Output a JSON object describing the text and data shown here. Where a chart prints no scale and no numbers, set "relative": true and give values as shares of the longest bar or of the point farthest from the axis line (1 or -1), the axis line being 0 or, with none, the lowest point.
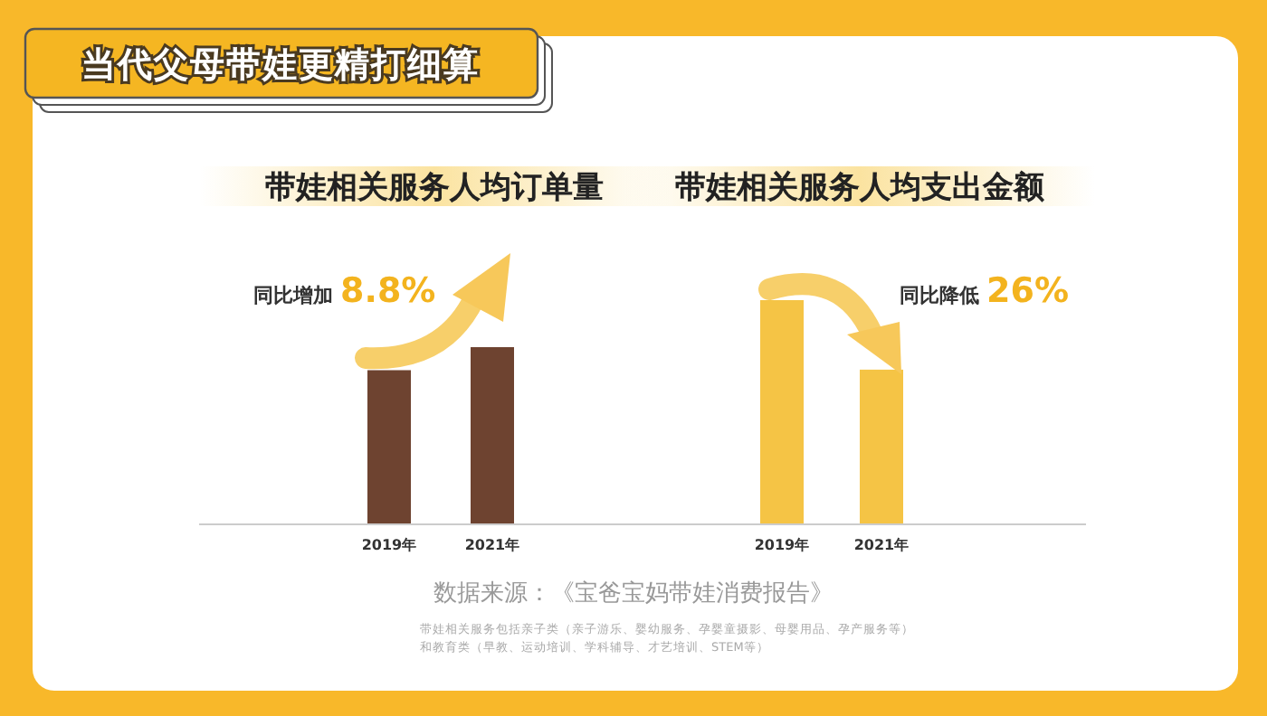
{
  "chart_data": [
    {
      "type": "other",
      "title": "当代父母带娃更精打细算",
      "annotations": [
        "数据来源：《宝爸宝妈带娃消费报告》",
        "带娃相关服务包括亲子类（亲子游乐、婴幼服务、孕婴童摄影、母婴用品、孕产服务等）",
        "和教育类（早教、运动培训、学科辅导、才艺培训、STEM等）"
      ]
    },
    {
      "type": "bar",
      "title": "带娃相关服务人均订单量",
      "categories": [
        "2019年",
        "2021年"
      ],
      "values": [
        0.87,
        1
      ],
      "color": "#6e4330",
      "relative": true,
      "annotations": [
        "同比增加 8.8%"
      ]
    },
    {
      "type": "bar",
      "title": "带娃相关服务人均支出金额",
      "categories": [
        "2019年",
        "2021年"
      ],
      "values": [
        1,
        0.69
      ],
      "color": "#f5c445",
      "relative": true,
      "annotations": [
        "同比降低 26%"
      ]
    }
  ]
}
